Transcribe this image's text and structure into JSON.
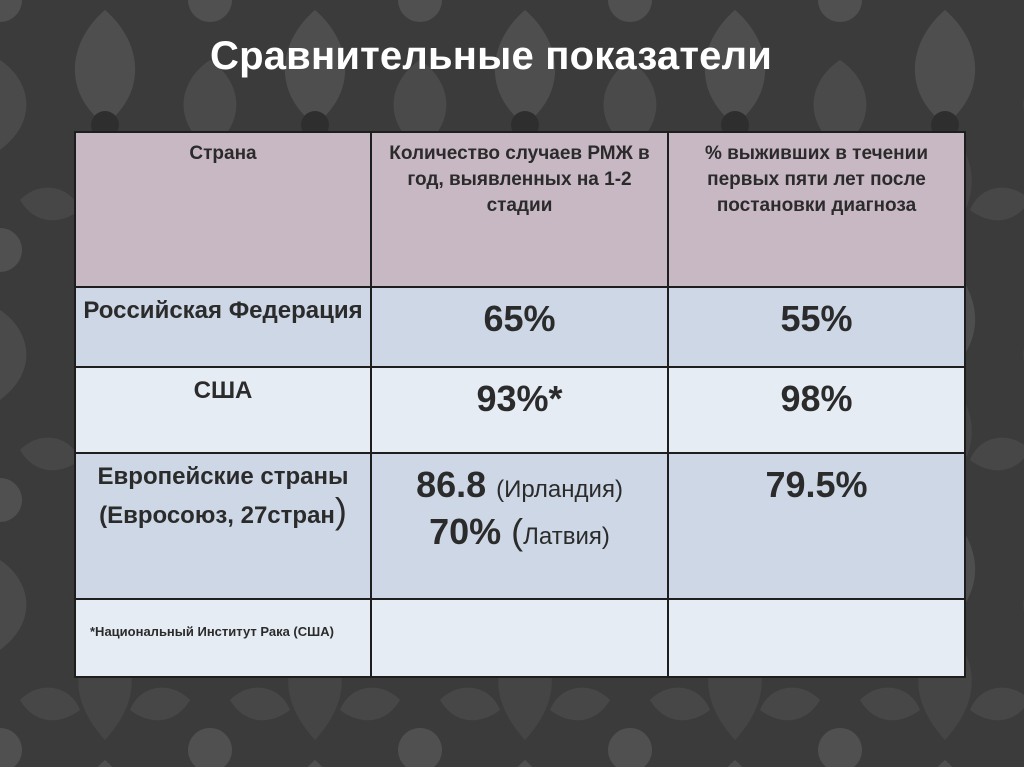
{
  "title": "Сравнительные показатели",
  "table": {
    "headers": [
      "Страна",
      "Количество случаев РМЖ в год, выявленных на 1-2 стадии",
      "% выживших в течении первых пяти лет после постановки диагноза"
    ],
    "rows": [
      {
        "country": "Российская Федерация",
        "cases": "65%",
        "survival": "55%"
      },
      {
        "country": "США",
        "cases": "93%*",
        "survival": "98%"
      },
      {
        "country_main": "Европейские страны (Евросоюз, 27стран",
        "country_paren": ")",
        "cases_1_value": "86.8",
        "cases_1_note": "(Ирландия)",
        "cases_2_value": "70%",
        "cases_2_open": "(",
        "cases_2_note": "Латвия)",
        "survival": "79.5%"
      }
    ],
    "footnote": "*Национальный Институт Рака (США)"
  }
}
